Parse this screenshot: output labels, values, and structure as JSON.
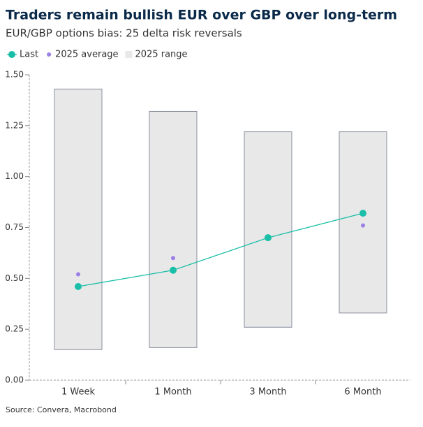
{
  "chart_data": {
    "type": "range-line",
    "title": "Traders remain bullish EUR over GBP over long-term",
    "subtitle": "EUR/GBP options bias: 25 delta risk reversals",
    "source": "Source: Convera, Macrobond",
    "categories": [
      "1 Week",
      "1 Month",
      "3 Month",
      "6 Month"
    ],
    "series": [
      {
        "name": "Last",
        "type": "line",
        "color": "#1bbfa8",
        "values": [
          0.46,
          0.54,
          0.7,
          0.82
        ]
      },
      {
        "name": "2025 average",
        "type": "scatter",
        "color": "#9b7fe6",
        "values": [
          0.52,
          0.6,
          null,
          0.76
        ]
      },
      {
        "name": "2025 range",
        "type": "range",
        "color": "#e8e8e8",
        "low": [
          0.15,
          0.16,
          0.26,
          0.33
        ],
        "high": [
          1.43,
          1.32,
          1.22,
          1.22
        ]
      }
    ],
    "ylim": [
      0,
      1.5
    ],
    "yticks": [
      {
        "value": 0,
        "label": "0.00"
      },
      {
        "value": 0.25,
        "label": "0.25"
      },
      {
        "value": 0.5,
        "label": "0.50"
      },
      {
        "value": 0.75,
        "label": "0.75"
      },
      {
        "value": 1,
        "label": "1.00"
      },
      {
        "value": 1.25,
        "label": "1.25"
      },
      {
        "value": 1.5,
        "label": "1.50"
      }
    ]
  }
}
